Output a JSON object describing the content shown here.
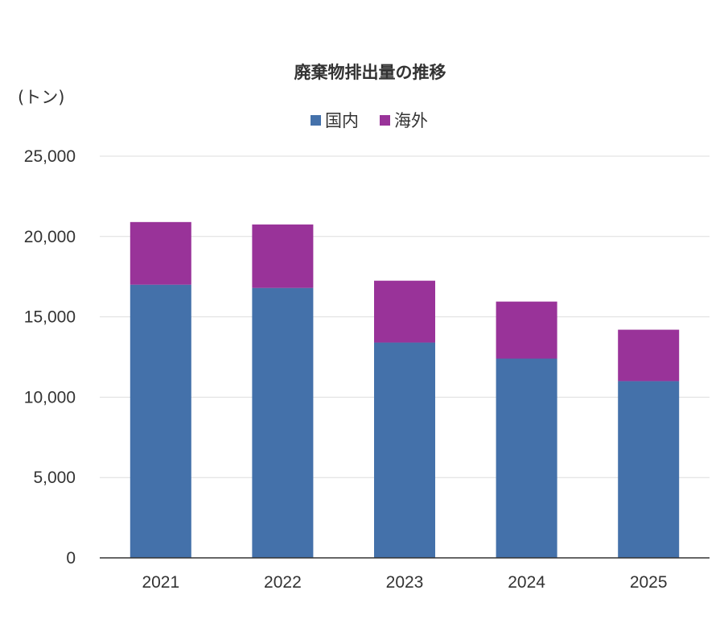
{
  "chart_data": {
    "type": "bar",
    "stacked": true,
    "title": "廃棄物排出量の推移",
    "ylabel": "(トン)",
    "xlabel": "",
    "categories": [
      "2021",
      "2022",
      "2023",
      "2024",
      "2025"
    ],
    "series": [
      {
        "name": "国内",
        "color": "#4471aa",
        "values": [
          17000,
          16800,
          13400,
          12400,
          11000
        ]
      },
      {
        "name": "海外",
        "color": "#993399",
        "values": [
          3900,
          3950,
          3850,
          3550,
          3200
        ]
      }
    ],
    "ylim": [
      0,
      25000
    ],
    "yticks": [
      "0",
      "5,000",
      "10,000",
      "15,000",
      "20,000",
      "25,000"
    ],
    "grid": true,
    "legend_position": "top"
  }
}
